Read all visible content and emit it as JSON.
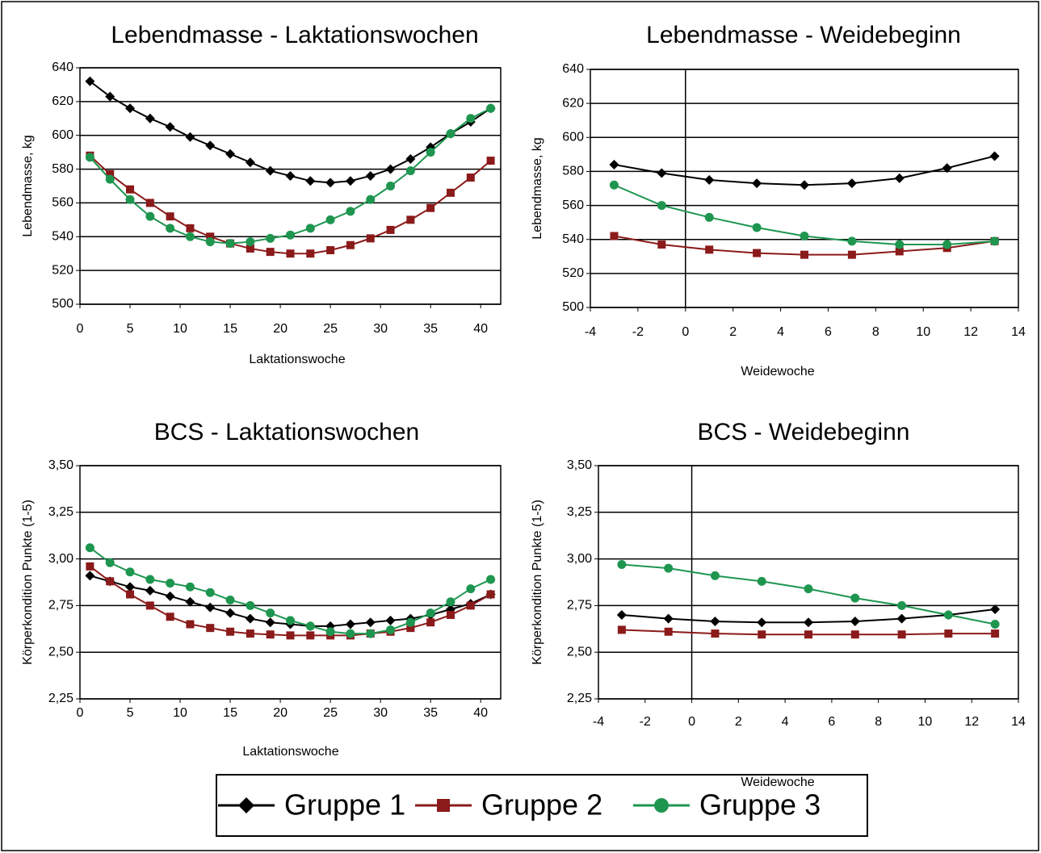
{
  "chart_data": [
    {
      "type": "line",
      "title": "Lebendmasse - Laktationswochen",
      "x_label": "Laktationswoche",
      "y_label": "Lebendmasse, kg",
      "x": [
        1,
        3,
        5,
        7,
        9,
        11,
        13,
        15,
        17,
        19,
        21,
        23,
        25,
        27,
        29,
        31,
        33,
        35,
        37,
        39,
        41
      ],
      "xlim": [
        0,
        42
      ],
      "xticks": [
        0,
        5,
        10,
        15,
        20,
        25,
        30,
        35,
        40
      ],
      "ylim": [
        500,
        640
      ],
      "yticks": [
        500,
        520,
        540,
        560,
        580,
        600,
        620,
        640
      ],
      "grid": true,
      "series": [
        {
          "name": "Gruppe 1",
          "color": "#000000",
          "marker": "diamond",
          "values": [
            632,
            623,
            616,
            610,
            605,
            599,
            594,
            589,
            584,
            579,
            576,
            573,
            572,
            573,
            576,
            580,
            586,
            593,
            601,
            608,
            616
          ]
        },
        {
          "name": "Gruppe 2",
          "color": "#8b1a1a",
          "marker": "square",
          "values": [
            588,
            577,
            568,
            560,
            552,
            545,
            540,
            536,
            533,
            531,
            530,
            530,
            532,
            535,
            539,
            544,
            550,
            557,
            566,
            575,
            585
          ]
        },
        {
          "name": "Gruppe 3",
          "color": "#1e9650",
          "marker": "circle",
          "values": [
            587,
            574,
            562,
            552,
            545,
            540,
            537,
            536,
            537,
            539,
            541,
            545,
            550,
            555,
            562,
            570,
            579,
            590,
            601,
            610,
            616
          ]
        }
      ]
    },
    {
      "type": "line",
      "title": "Lebendmasse - Weidebeginn",
      "x_label": "Weidewoche",
      "y_label": "Lebendmasse, kg",
      "x": [
        -3,
        -1,
        1,
        3,
        5,
        7,
        9,
        11,
        13
      ],
      "xlim": [
        -4,
        14
      ],
      "xticks": [
        -4,
        -2,
        0,
        2,
        4,
        6,
        8,
        10,
        12,
        14
      ],
      "ylim": [
        500,
        640
      ],
      "yticks": [
        500,
        520,
        540,
        560,
        580,
        600,
        620,
        640
      ],
      "grid": true,
      "series": [
        {
          "name": "Gruppe 1",
          "color": "#000000",
          "marker": "diamond",
          "values": [
            584,
            579,
            575,
            573,
            572,
            573,
            576,
            582,
            589
          ]
        },
        {
          "name": "Gruppe 2",
          "color": "#8b1a1a",
          "marker": "square",
          "values": [
            542,
            537,
            534,
            532,
            531,
            531,
            533,
            535,
            539
          ]
        },
        {
          "name": "Gruppe 3",
          "color": "#1e9650",
          "marker": "circle",
          "values": [
            572,
            560,
            553,
            547,
            542,
            539,
            537,
            537,
            539
          ]
        }
      ]
    },
    {
      "type": "line",
      "title": "BCS - Laktationswochen",
      "x_label": "Laktationswoche",
      "y_label": "Körperkondition Punkte (1-5)",
      "x": [
        1,
        3,
        5,
        7,
        9,
        11,
        13,
        15,
        17,
        19,
        21,
        23,
        25,
        27,
        29,
        31,
        33,
        35,
        37,
        39,
        41
      ],
      "xlim": [
        0,
        42
      ],
      "xticks": [
        0,
        5,
        10,
        15,
        20,
        25,
        30,
        35,
        40
      ],
      "ylim": [
        2.25,
        3.5
      ],
      "yticks": [
        {
          "value": 2.25,
          "label": "2,25"
        },
        {
          "value": 2.5,
          "label": "2,50"
        },
        {
          "value": 2.75,
          "label": "2,75"
        },
        {
          "value": 3,
          "label": "3,00"
        },
        {
          "value": 3.25,
          "label": "3,25"
        },
        {
          "value": 3.5,
          "label": "3,50"
        }
      ],
      "grid": true,
      "series": [
        {
          "name": "Gruppe 1",
          "color": "#000000",
          "marker": "diamond",
          "values": [
            2.91,
            2.88,
            2.85,
            2.83,
            2.8,
            2.77,
            2.74,
            2.71,
            2.68,
            2.66,
            2.65,
            2.64,
            2.64,
            2.65,
            2.66,
            2.67,
            2.68,
            2.7,
            2.73,
            2.76,
            2.81
          ]
        },
        {
          "name": "Gruppe 2",
          "color": "#8b1a1a",
          "marker": "square",
          "values": [
            2.96,
            2.88,
            2.81,
            2.75,
            2.69,
            2.65,
            2.63,
            2.61,
            2.6,
            2.595,
            2.59,
            2.59,
            2.59,
            2.59,
            2.6,
            2.61,
            2.63,
            2.66,
            2.7,
            2.75,
            2.81
          ]
        },
        {
          "name": "Gruppe 3",
          "color": "#1e9650",
          "marker": "circle",
          "values": [
            3.06,
            2.98,
            2.93,
            2.89,
            2.87,
            2.85,
            2.82,
            2.78,
            2.75,
            2.71,
            2.67,
            2.64,
            2.61,
            2.6,
            2.6,
            2.62,
            2.66,
            2.71,
            2.77,
            2.84,
            2.89
          ]
        }
      ]
    },
    {
      "type": "line",
      "title": "BCS - Weidebeginn",
      "x_label": "Weidewoche",
      "y_label": "Körperkondition Punkte (1-5)",
      "x": [
        -3,
        -1,
        1,
        3,
        5,
        7,
        9,
        11,
        13
      ],
      "xlim": [
        -4,
        14
      ],
      "xticks": [
        -4,
        -2,
        0,
        2,
        4,
        6,
        8,
        10,
        12,
        14
      ],
      "ylim": [
        2.25,
        3.5
      ],
      "yticks": [
        {
          "value": 2.25,
          "label": "2,25"
        },
        {
          "value": 2.5,
          "label": "2,50"
        },
        {
          "value": 2.75,
          "label": "2,75"
        },
        {
          "value": 3,
          "label": "3,00"
        },
        {
          "value": 3.25,
          "label": "3,25"
        },
        {
          "value": 3.5,
          "label": "3,50"
        }
      ],
      "grid": true,
      "series": [
        {
          "name": "Gruppe 1",
          "color": "#000000",
          "marker": "diamond",
          "values": [
            2.7,
            2.68,
            2.665,
            2.66,
            2.66,
            2.665,
            2.68,
            2.7,
            2.73
          ]
        },
        {
          "name": "Gruppe 2",
          "color": "#8b1a1a",
          "marker": "square",
          "values": [
            2.62,
            2.61,
            2.6,
            2.595,
            2.595,
            2.595,
            2.595,
            2.6,
            2.6
          ]
        },
        {
          "name": "Gruppe 3",
          "color": "#1e9650",
          "marker": "circle",
          "values": [
            2.97,
            2.95,
            2.91,
            2.88,
            2.84,
            2.79,
            2.75,
            2.7,
            2.65
          ]
        }
      ]
    }
  ]
}
